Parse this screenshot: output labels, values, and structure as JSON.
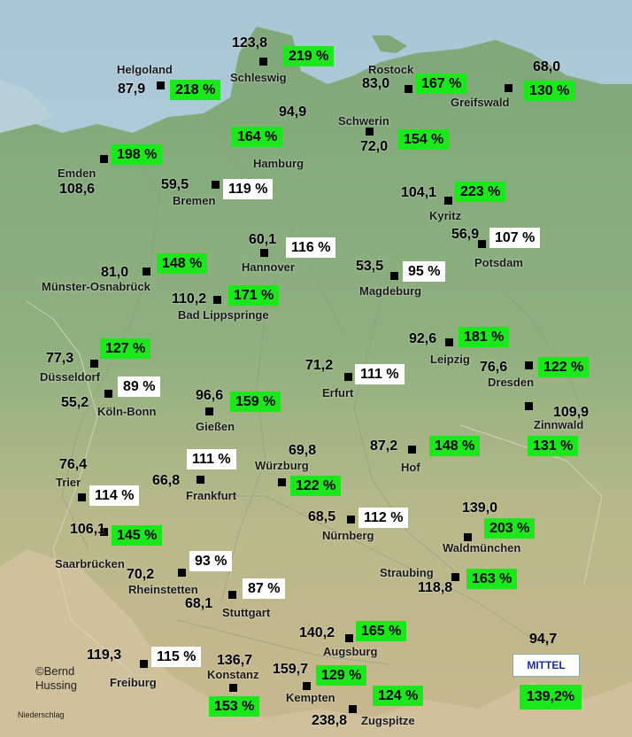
{
  "map": {
    "credit_line1": "©Bernd",
    "credit_line2": "Hussing",
    "caption": "Niederschlag",
    "legend": {
      "label": "MITTEL",
      "value": "94,7",
      "percent": "139,2%"
    },
    "colors": {
      "above_normal": "#1be81b",
      "normal": "#ffffff",
      "marker": "#000000"
    }
  },
  "stations": [
    {
      "name": "Helgoland",
      "value": "87,9",
      "percent": "218 %",
      "status": "high"
    },
    {
      "name": "Schleswig",
      "value": "123,8",
      "percent": "219 %",
      "status": "high"
    },
    {
      "name": "Rostock",
      "value": "83,0",
      "percent": "167 %",
      "status": "high"
    },
    {
      "name": "Greifswald",
      "value": "68,0",
      "percent": "130 %",
      "status": "high"
    },
    {
      "name": "Hamburg",
      "value": "94,9",
      "percent": "164 %",
      "status": "high"
    },
    {
      "name": "Schwerin",
      "value": "72,0",
      "percent": "154 %",
      "status": "high"
    },
    {
      "name": "Emden",
      "value": "108,6",
      "percent": "198 %",
      "status": "high"
    },
    {
      "name": "Bremen",
      "value": "59,5",
      "percent": "119 %",
      "status": "normal"
    },
    {
      "name": "Kyritz",
      "value": "104,1",
      "percent": "223 %",
      "status": "high"
    },
    {
      "name": "Potsdam",
      "value": "56,9",
      "percent": "107 %",
      "status": "normal"
    },
    {
      "name": "Hannover",
      "value": "60,1",
      "percent": "116 %",
      "status": "normal"
    },
    {
      "name": "Münster-Osnabrück",
      "value": "81,0",
      "percent": "148 %",
      "status": "high"
    },
    {
      "name": "Magdeburg",
      "value": "53,5",
      "percent": "95 %",
      "status": "normal"
    },
    {
      "name": "Bad Lippspringe",
      "value": "110,2",
      "percent": "171 %",
      "status": "high"
    },
    {
      "name": "Leipzig",
      "value": "92,6",
      "percent": "181 %",
      "status": "high"
    },
    {
      "name": "Düsseldorf",
      "value": "77,3",
      "percent": "127 %",
      "status": "high"
    },
    {
      "name": "Erfurt",
      "value": "71,2",
      "percent": "111 %",
      "status": "normal"
    },
    {
      "name": "Dresden",
      "value": "76,6",
      "percent": "122 %",
      "status": "high"
    },
    {
      "name": "Köln-Bonn",
      "value": "55,2",
      "percent": "89 %",
      "status": "normal"
    },
    {
      "name": "Gießen",
      "value": "96,6",
      "percent": "159 %",
      "status": "high"
    },
    {
      "name": "Zinnwald",
      "value": "109,9",
      "percent": "131 %",
      "status": "high"
    },
    {
      "name": "Hof",
      "value": "87,2",
      "percent": "148 %",
      "status": "high"
    },
    {
      "name": "Frankfurt",
      "value": "66,8",
      "percent": "111 %",
      "status": "normal"
    },
    {
      "name": "Würzburg",
      "value": "69,8",
      "percent": "122 %",
      "status": "high"
    },
    {
      "name": "Trier",
      "value": "76,4",
      "percent": "114 %",
      "status": "normal"
    },
    {
      "name": "Nürnberg",
      "value": "68,5",
      "percent": "112 %",
      "status": "normal"
    },
    {
      "name": "Waldmünchen",
      "value": "139,0",
      "percent": "203 %",
      "status": "high"
    },
    {
      "name": "Saarbrücken",
      "value": "106,1",
      "percent": "145 %",
      "status": "high"
    },
    {
      "name": "Rheinstetten",
      "value": "70,2",
      "percent": "93 %",
      "status": "normal"
    },
    {
      "name": "Straubing",
      "value": "118,8",
      "percent": "163 %",
      "status": "high"
    },
    {
      "name": "Stuttgart",
      "value": "68,1",
      "percent": "87 %",
      "status": "normal"
    },
    {
      "name": "Augsburg",
      "value": "140,2",
      "percent": "165 %",
      "status": "high"
    },
    {
      "name": "Freiburg",
      "value": "119,3",
      "percent": "115 %",
      "status": "normal"
    },
    {
      "name": "Konstanz",
      "value": "136,7",
      "percent": "153 %",
      "status": "high"
    },
    {
      "name": "Kempten",
      "value": "159,7",
      "percent": "129 %",
      "status": "high"
    },
    {
      "name": "Zugspitze",
      "value": "238,8",
      "percent": "124 %",
      "status": "high"
    }
  ]
}
